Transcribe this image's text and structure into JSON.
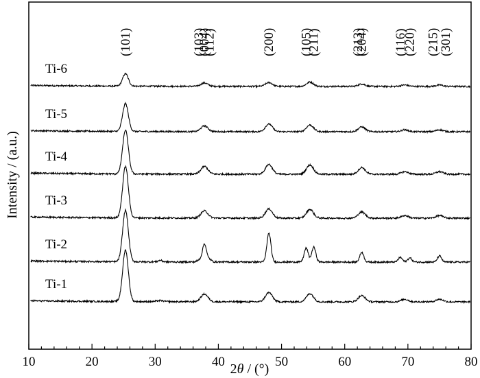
{
  "chart_data": {
    "type": "line",
    "title": "",
    "xlabel": {
      "prefix": "2",
      "italic": "θ",
      "suffix": " / (°)"
    },
    "ylabel": "Intensity / (a.u.)",
    "xlim": [
      10,
      80
    ],
    "xticks": [
      10,
      20,
      30,
      40,
      50,
      60,
      70,
      80
    ],
    "y_ticks_shown": false,
    "grid": false,
    "legend": "none (series labelled inline at left)",
    "peak_labels": [
      {
        "text": "(101)",
        "x": 25.3
      },
      {
        "text": "(103)",
        "x": 36.9
      },
      {
        "text": "(004)",
        "x": 37.8
      },
      {
        "text": "(112)",
        "x": 38.6
      },
      {
        "text": "(200)",
        "x": 48.0
      },
      {
        "text": "(105)",
        "x": 53.9
      },
      {
        "text": "(211)",
        "x": 55.1
      },
      {
        "text": "(213)",
        "x": 62.1
      },
      {
        "text": "(204)",
        "x": 62.7
      },
      {
        "text": "(116)",
        "x": 68.8
      },
      {
        "text": "(220)",
        "x": 70.3
      },
      {
        "text": "(215)",
        "x": 74.0
      },
      {
        "text": "(301)",
        "x": 76.0
      }
    ],
    "series": [
      {
        "name": "Ti-6",
        "peaks": [
          [
            25.3,
            26
          ],
          [
            37.8,
            7
          ],
          [
            48.0,
            8
          ],
          [
            54.5,
            9
          ],
          [
            62.7,
            5
          ],
          [
            69.5,
            3
          ],
          [
            75.0,
            3
          ]
        ]
      },
      {
        "name": "Ti-5",
        "peaks": [
          [
            25.3,
            58
          ],
          [
            37.8,
            12
          ],
          [
            48.0,
            16
          ],
          [
            54.5,
            14
          ],
          [
            62.7,
            10
          ],
          [
            69.5,
            4
          ],
          [
            75.0,
            4
          ]
        ]
      },
      {
        "name": "Ti-4",
        "peaks": [
          [
            25.3,
            85
          ],
          [
            37.8,
            15
          ],
          [
            48.0,
            19
          ],
          [
            54.5,
            18
          ],
          [
            62.7,
            13
          ],
          [
            69.5,
            5
          ],
          [
            75.0,
            5
          ]
        ]
      },
      {
        "name": "Ti-3",
        "peaks": [
          [
            25.3,
            100
          ],
          [
            37.8,
            14
          ],
          [
            48.0,
            18
          ],
          [
            54.5,
            17
          ],
          [
            62.7,
            12
          ],
          [
            69.5,
            5
          ],
          [
            75.0,
            5
          ]
        ]
      },
      {
        "name": "Ti-2",
        "peaks": [
          [
            25.3,
            100
          ],
          [
            30.8,
            3
          ],
          [
            37.0,
            4
          ],
          [
            37.8,
            35
          ],
          [
            38.6,
            5
          ],
          [
            48.0,
            56
          ],
          [
            53.9,
            27
          ],
          [
            55.1,
            29
          ],
          [
            62.7,
            19
          ],
          [
            68.8,
            9
          ],
          [
            70.3,
            8
          ],
          [
            75.0,
            12
          ]
        ]
      },
      {
        "name": "Ti-1",
        "peaks": [
          [
            25.3,
            100
          ],
          [
            30.8,
            2
          ],
          [
            37.8,
            15
          ],
          [
            48.0,
            18
          ],
          [
            54.5,
            16
          ],
          [
            62.7,
            12
          ],
          [
            69.5,
            5
          ],
          [
            75.0,
            5
          ]
        ]
      }
    ]
  }
}
